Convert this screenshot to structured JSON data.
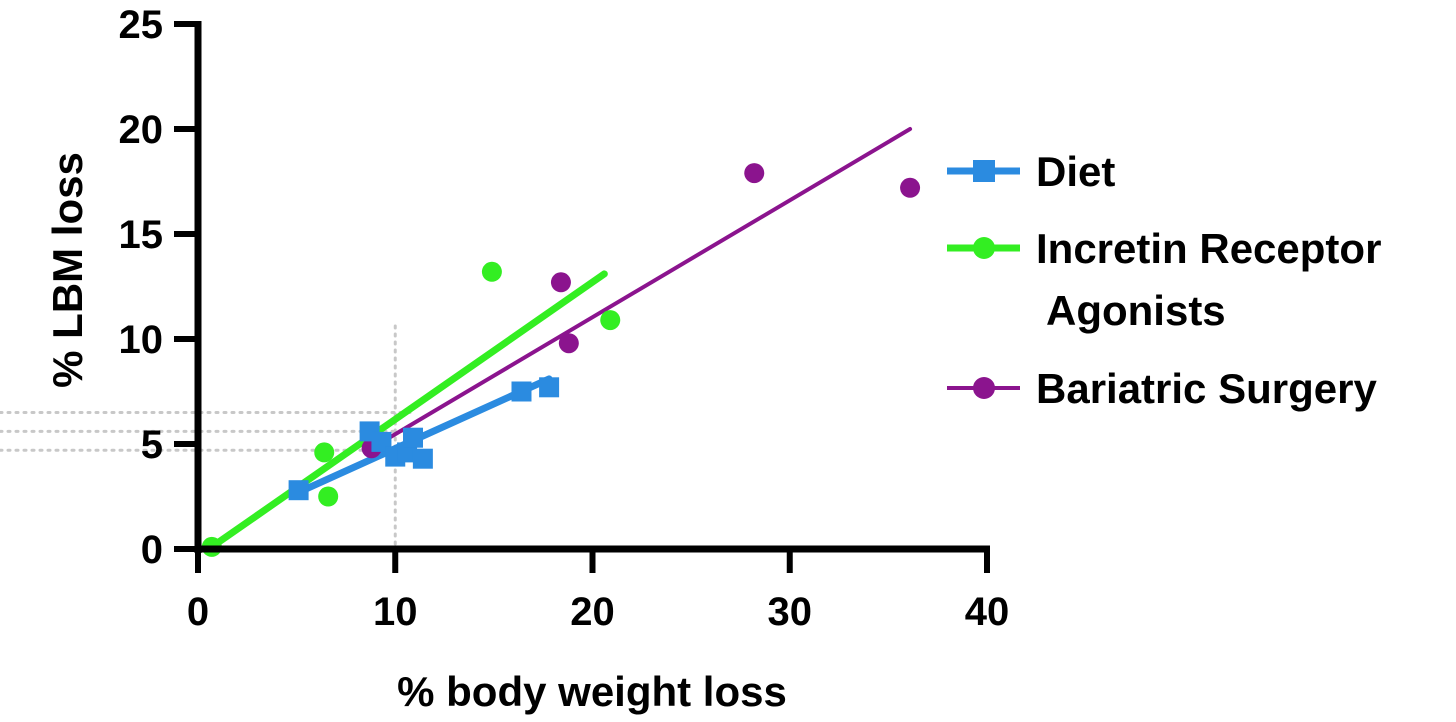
{
  "chart_data": {
    "type": "scatter",
    "title": "",
    "xlabel": "% body weight loss",
    "ylabel": "% LBM loss",
    "xlim": [
      0,
      40
    ],
    "ylim": [
      0,
      25
    ],
    "xticks": [
      "0",
      "10",
      "20",
      "30",
      "40"
    ],
    "yticks": [
      "0",
      "5",
      "10",
      "15",
      "20",
      "25"
    ],
    "grid": false,
    "legend_position": "right",
    "series": [
      {
        "name": "Diet",
        "legend_lines": [
          "Diet"
        ],
        "color": "#2b8be0",
        "marker": "square",
        "points": [
          [
            5.1,
            2.8
          ],
          [
            8.7,
            5.6
          ],
          [
            9.3,
            5.1
          ],
          [
            10.0,
            4.4
          ],
          [
            10.6,
            4.6
          ],
          [
            10.9,
            5.3
          ],
          [
            11.4,
            4.3
          ],
          [
            16.4,
            7.5
          ],
          [
            17.8,
            7.7
          ]
        ],
        "fit": [
          [
            5.1,
            2.7
          ],
          [
            17.8,
            8.1
          ]
        ]
      },
      {
        "name": "Incretin Receptor Agonists",
        "legend_lines": [
          "Incretin Receptor",
          "Agonists"
        ],
        "color": "#33ee22",
        "marker": "circle",
        "points": [
          [
            0.7,
            0.1
          ],
          [
            6.4,
            4.6
          ],
          [
            6.6,
            2.5
          ],
          [
            14.9,
            13.2
          ],
          [
            20.9,
            10.9
          ]
        ],
        "fit": [
          [
            0.7,
            0.1
          ],
          [
            20.6,
            13.1
          ]
        ]
      },
      {
        "name": "Bariatric Surgery",
        "legend_lines": [
          "Bariatric Surgery"
        ],
        "color": "#8b148e",
        "marker": "circle",
        "points": [
          [
            8.8,
            4.8
          ],
          [
            18.4,
            12.7
          ],
          [
            18.8,
            9.8
          ],
          [
            28.2,
            17.9
          ],
          [
            36.1,
            17.2
          ]
        ],
        "fit": [
          [
            8.8,
            4.8
          ],
          [
            36.1,
            20.0
          ]
        ]
      }
    ],
    "reference_lines": {
      "x": [
        10
      ],
      "y": [
        4.7,
        5.6,
        6.5
      ]
    }
  }
}
